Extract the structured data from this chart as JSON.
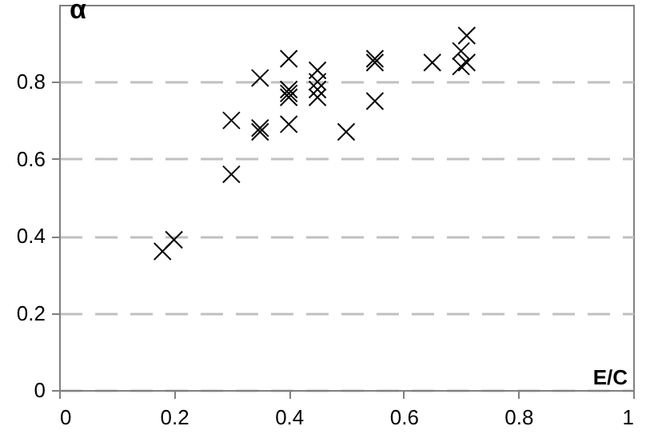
{
  "chart_data": {
    "type": "scatter",
    "xlabel": "E/C",
    "ylabel": "α",
    "x": [
      0.18,
      0.2,
      0.3,
      0.3,
      0.35,
      0.35,
      0.35,
      0.4,
      0.4,
      0.4,
      0.4,
      0.4,
      0.45,
      0.45,
      0.45,
      0.45,
      0.5,
      0.55,
      0.55,
      0.55,
      0.65,
      0.7,
      0.7,
      0.71,
      0.71
    ],
    "values": [
      0.36,
      0.39,
      0.7,
      0.56,
      0.81,
      0.68,
      0.67,
      0.86,
      0.78,
      0.77,
      0.76,
      0.69,
      0.83,
      0.8,
      0.78,
      0.76,
      0.67,
      0.86,
      0.85,
      0.75,
      0.85,
      0.88,
      0.84,
      0.92,
      0.85
    ],
    "color": "#000000",
    "marker": "cross",
    "xlim": [
      0,
      1
    ],
    "xticks": [
      0,
      0.2,
      0.4,
      0.6,
      0.8,
      1
    ],
    "ylim": [
      0,
      1
    ],
    "yticks": [
      0,
      0.2,
      0.4,
      0.6,
      0.8
    ],
    "grid": "y"
  }
}
